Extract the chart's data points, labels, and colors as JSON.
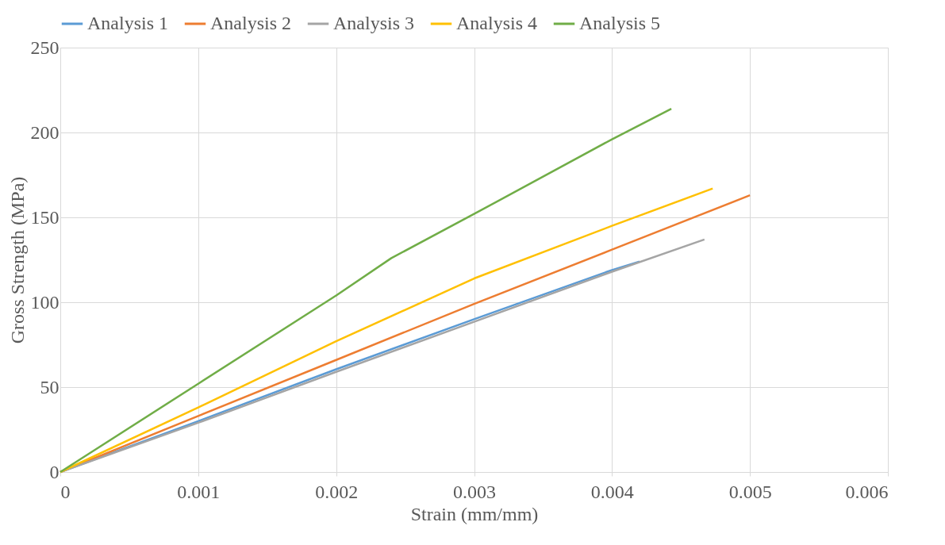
{
  "chart_data": {
    "type": "line",
    "xlabel": "Strain (mm/mm)",
    "ylabel": "Gross  Strength (MPa)",
    "xlim": [
      0,
      0.006
    ],
    "xticks": [
      0,
      0.001,
      0.002,
      0.003,
      0.004,
      0.005,
      0.006
    ],
    "ylim": [
      0,
      250
    ],
    "yticks": [
      0,
      50,
      100,
      150,
      200,
      250
    ],
    "grid": true,
    "legend": "top",
    "marker": "none",
    "line_style": "solid",
    "series": [
      {
        "name": "Analysis 1",
        "color": "#5b9bd5",
        "x": [
          0,
          0.001,
          0.002,
          0.003,
          0.004,
          0.0042
        ],
        "values": [
          0,
          30,
          60.5,
          90,
          119,
          124
        ]
      },
      {
        "name": "Analysis 2",
        "color": "#ed7d31",
        "x": [
          0,
          0.001,
          0.002,
          0.003,
          0.004,
          0.005
        ],
        "values": [
          0,
          33,
          66,
          99,
          131,
          163
        ]
      },
      {
        "name": "Analysis 3",
        "color": "#a5a5a5",
        "x": [
          0,
          0.001,
          0.002,
          0.003,
          0.004,
          0.00467
        ],
        "values": [
          0,
          29,
          59,
          88.5,
          118,
          137
        ]
      },
      {
        "name": "Analysis 4",
        "color": "#ffc000",
        "x": [
          0,
          0.001,
          0.002,
          0.003,
          0.004,
          0.00473
        ],
        "values": [
          0,
          38,
          77,
          114,
          145,
          167
        ]
      },
      {
        "name": "Analysis 5",
        "color": "#70ad47",
        "x": [
          0,
          0.001,
          0.002,
          0.0024,
          0.003,
          0.004,
          0.00443
        ],
        "values": [
          0,
          52,
          104,
          126,
          152,
          196,
          214
        ]
      }
    ]
  }
}
